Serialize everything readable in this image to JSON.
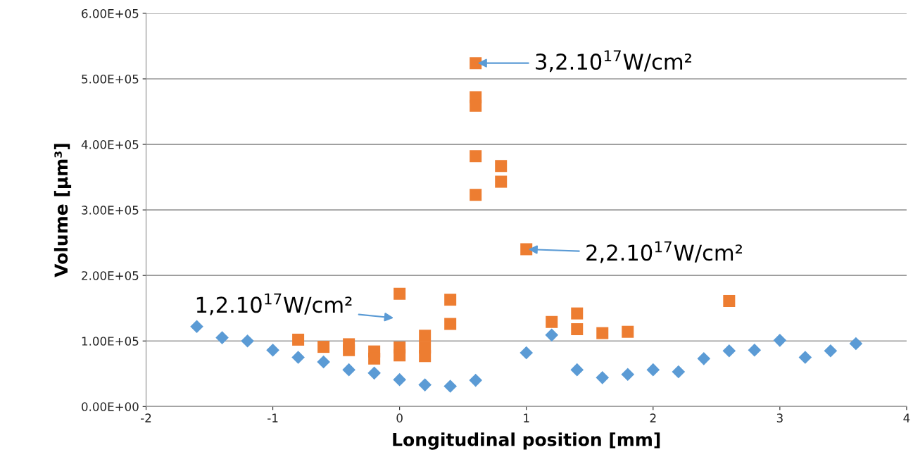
{
  "chart_data": {
    "type": "scatter",
    "xlabel": "Longitudinal position [mm]",
    "ylabel": "Volume [µm³]",
    "xlim": [
      -2,
      4
    ],
    "xticks": [
      -2,
      -1,
      0,
      1,
      2,
      3,
      4
    ],
    "ylim": [
      0,
      600000
    ],
    "yticks": [
      {
        "value": 0,
        "label": "0.00E+00"
      },
      {
        "value": 100000,
        "label": "1.00E+05"
      },
      {
        "value": 200000,
        "label": "2.00E+05"
      },
      {
        "value": 300000,
        "label": "3.00E+05"
      },
      {
        "value": 400000,
        "label": "4.00E+05"
      },
      {
        "value": 500000,
        "label": "5.00E+05"
      },
      {
        "value": 600000,
        "label": "6.00E+05"
      }
    ],
    "grid": "y",
    "legend": false,
    "series": [
      {
        "color": "#5b9bd5",
        "marker": "diamond",
        "x": [
          -1.6,
          -1.4,
          -1.2,
          -1.0,
          -0.8,
          -0.6,
          -0.4,
          -0.2,
          0,
          0.2,
          0.4,
          0.6,
          1.0,
          1.2,
          1.4,
          1.6,
          1.8,
          2.0,
          2.2,
          2.4,
          2.6,
          2.8,
          3.0,
          3.2,
          3.4,
          3.6
        ],
        "values": [
          122000,
          105000,
          100000,
          86000,
          75000,
          68000,
          56000,
          51000,
          41000,
          33000,
          31000,
          40000,
          82000,
          109000,
          56000,
          44000,
          49000,
          56000,
          53000,
          73000,
          85000,
          86000,
          101000,
          75000,
          85000,
          96000
        ]
      },
      {
        "color": "#ed7d31",
        "marker": "square",
        "x": [
          -0.8,
          -0.6,
          -0.4,
          -0.4,
          -0.2,
          -0.2,
          0,
          0,
          0,
          0.2,
          0.2,
          0.2,
          0.4,
          0.4,
          0.6,
          0.6,
          0.6,
          0.6,
          0.6,
          0.8,
          0.8,
          1.0,
          1.2,
          1.4,
          1.4,
          1.6,
          1.8,
          2.6
        ],
        "values": [
          102000,
          91000,
          95000,
          86000,
          84000,
          73000,
          172000,
          90000,
          78000,
          108000,
          90000,
          77000,
          163000,
          126000,
          524000,
          472000,
          459000,
          382000,
          323000,
          367000,
          343000,
          240000,
          129000,
          142000,
          118000,
          112000,
          114000,
          161000
        ]
      }
    ],
    "annotations": [
      {
        "text": "3,2.10$^{17}$W/cm²",
        "x": 0.6,
        "y": 524000
      },
      {
        "text": "2,2.10$^{17}$W/cm²",
        "x": 1.0,
        "y": 240000
      },
      "1,2.10$^{17}$W/cm²"
    ]
  }
}
